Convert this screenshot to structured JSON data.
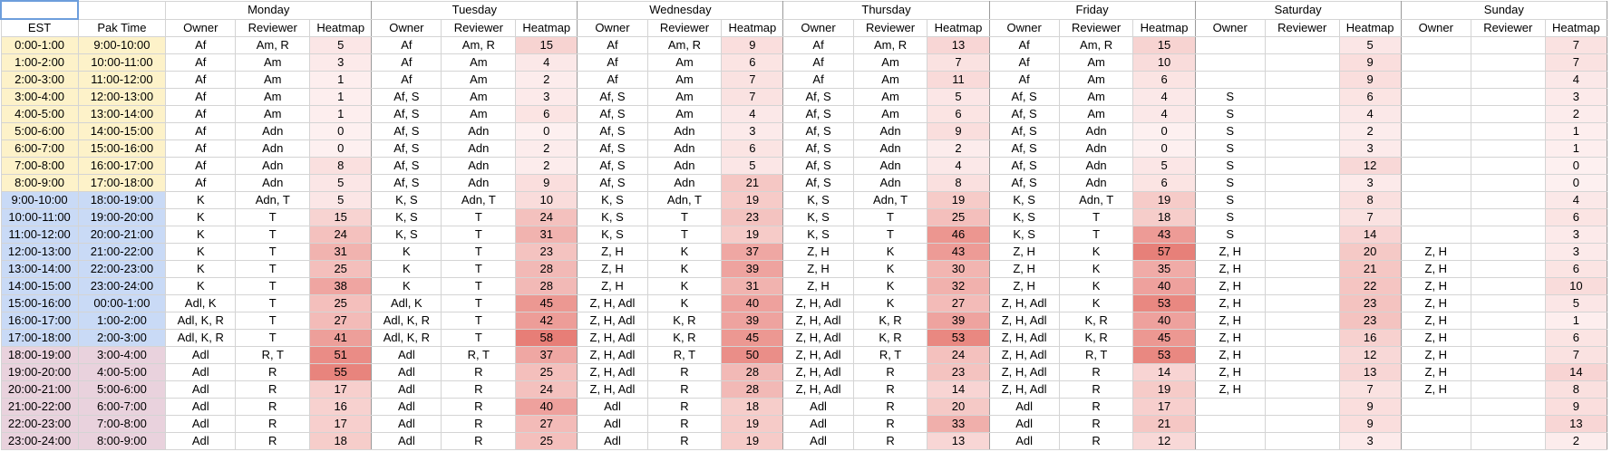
{
  "header": {
    "est": "EST",
    "pak": "Pak Time",
    "cols": [
      "Owner",
      "Reviewer",
      "Heatmap"
    ]
  },
  "days": [
    "Monday",
    "Tuesday",
    "Wednesday",
    "Thursday",
    "Friday",
    "Saturday",
    "Sunday"
  ],
  "colors": {
    "heat_low": "#fdf0f0",
    "heat_high": "#e77e77",
    "est_morning": "#fdf2c9",
    "est_day": "#c9daf6",
    "est_evening": "#e9d2dd"
  },
  "rows": [
    {
      "est": "0:00-1:00",
      "pak": "9:00-10:00",
      "days": [
        [
          "Af",
          "Am, R",
          "5"
        ],
        [
          "Af",
          "Am, R",
          "15"
        ],
        [
          "Af",
          "Am, R",
          "9"
        ],
        [
          "Af",
          "Am, R",
          "13"
        ],
        [
          "Af",
          "Am, R",
          "15"
        ],
        [
          "",
          "",
          "5"
        ],
        [
          "",
          "",
          "7"
        ]
      ]
    },
    {
      "est": "1:00-2:00",
      "pak": "10:00-11:00",
      "days": [
        [
          "Af",
          "Am",
          "3"
        ],
        [
          "Af",
          "Am",
          "4"
        ],
        [
          "Af",
          "Am",
          "6"
        ],
        [
          "Af",
          "Am",
          "7"
        ],
        [
          "Af",
          "Am",
          "10"
        ],
        [
          "",
          "",
          "9"
        ],
        [
          "",
          "",
          "7"
        ]
      ]
    },
    {
      "est": "2:00-3:00",
      "pak": "11:00-12:00",
      "days": [
        [
          "Af",
          "Am",
          "1"
        ],
        [
          "Af",
          "Am",
          "2"
        ],
        [
          "Af",
          "Am",
          "7"
        ],
        [
          "Af",
          "Am",
          "11"
        ],
        [
          "Af",
          "Am",
          "6"
        ],
        [
          "",
          "",
          "9"
        ],
        [
          "",
          "",
          "4"
        ]
      ]
    },
    {
      "est": "3:00-4:00",
      "pak": "12:00-13:00",
      "days": [
        [
          "Af",
          "Am",
          "1"
        ],
        [
          "Af, S",
          "Am",
          "3"
        ],
        [
          "Af, S",
          "Am",
          "7"
        ],
        [
          "Af, S",
          "Am",
          "5"
        ],
        [
          "Af, S",
          "Am",
          "4"
        ],
        [
          "S",
          "",
          "6"
        ],
        [
          "",
          "",
          "3"
        ]
      ]
    },
    {
      "est": "4:00-5:00",
      "pak": "13:00-14:00",
      "days": [
        [
          "Af",
          "Am",
          "1"
        ],
        [
          "Af, S",
          "Am",
          "6"
        ],
        [
          "Af, S",
          "Am",
          "4"
        ],
        [
          "Af, S",
          "Am",
          "6"
        ],
        [
          "Af, S",
          "Am",
          "4"
        ],
        [
          "S",
          "",
          "4"
        ],
        [
          "",
          "",
          "2"
        ]
      ]
    },
    {
      "est": "5:00-6:00",
      "pak": "14:00-15:00",
      "days": [
        [
          "Af",
          "Adn",
          "0"
        ],
        [
          "Af, S",
          "Adn",
          "0"
        ],
        [
          "Af, S",
          "Adn",
          "3"
        ],
        [
          "Af, S",
          "Adn",
          "9"
        ],
        [
          "Af, S",
          "Adn",
          "0"
        ],
        [
          "S",
          "",
          "2"
        ],
        [
          "",
          "",
          "1"
        ]
      ]
    },
    {
      "est": "6:00-7:00",
      "pak": "15:00-16:00",
      "days": [
        [
          "Af",
          "Adn",
          "0"
        ],
        [
          "Af, S",
          "Adn",
          "2"
        ],
        [
          "Af, S",
          "Adn",
          "6"
        ],
        [
          "Af, S",
          "Adn",
          "2"
        ],
        [
          "Af, S",
          "Adn",
          "0"
        ],
        [
          "S",
          "",
          "3"
        ],
        [
          "",
          "",
          "1"
        ]
      ]
    },
    {
      "est": "7:00-8:00",
      "pak": "16:00-17:00",
      "days": [
        [
          "Af",
          "Adn",
          "8"
        ],
        [
          "Af, S",
          "Adn",
          "2"
        ],
        [
          "Af, S",
          "Adn",
          "5"
        ],
        [
          "Af, S",
          "Adn",
          "4"
        ],
        [
          "Af, S",
          "Adn",
          "5"
        ],
        [
          "S",
          "",
          "12"
        ],
        [
          "",
          "",
          "0"
        ]
      ]
    },
    {
      "est": "8:00-9:00",
      "pak": "17:00-18:00",
      "days": [
        [
          "Af",
          "Adn",
          "5"
        ],
        [
          "Af, S",
          "Adn",
          "9"
        ],
        [
          "Af, S",
          "Adn",
          "21"
        ],
        [
          "Af, S",
          "Adn",
          "8"
        ],
        [
          "Af, S",
          "Adn",
          "6"
        ],
        [
          "S",
          "",
          "3"
        ],
        [
          "",
          "",
          "0"
        ]
      ]
    },
    {
      "est": "9:00-10:00",
      "pak": "18:00-19:00",
      "days": [
        [
          "K",
          "Adn, T",
          "5"
        ],
        [
          "K, S",
          "Adn, T",
          "10"
        ],
        [
          "K, S",
          "Adn, T",
          "19"
        ],
        [
          "K, S",
          "Adn, T",
          "19"
        ],
        [
          "K, S",
          "Adn, T",
          "19"
        ],
        [
          "S",
          "",
          "8"
        ],
        [
          "",
          "",
          "4"
        ]
      ]
    },
    {
      "est": "10:00-11:00",
      "pak": "19:00-20:00",
      "days": [
        [
          "K",
          "T",
          "15"
        ],
        [
          "K, S",
          "T",
          "24"
        ],
        [
          "K, S",
          "T",
          "23"
        ],
        [
          "K, S",
          "T",
          "25"
        ],
        [
          "K, S",
          "T",
          "18"
        ],
        [
          "S",
          "",
          "7"
        ],
        [
          "",
          "",
          "6"
        ]
      ]
    },
    {
      "est": "11:00-12:00",
      "pak": "20:00-21:00",
      "days": [
        [
          "K",
          "T",
          "24"
        ],
        [
          "K, S",
          "T",
          "31"
        ],
        [
          "K, S",
          "T",
          "19"
        ],
        [
          "K, S",
          "T",
          "46"
        ],
        [
          "K, S",
          "T",
          "43"
        ],
        [
          "S",
          "",
          "14"
        ],
        [
          "",
          "",
          "3"
        ]
      ]
    },
    {
      "est": "12:00-13:00",
      "pak": "21:00-22:00",
      "days": [
        [
          "K",
          "T",
          "31"
        ],
        [
          "K",
          "T",
          "23"
        ],
        [
          "Z, H",
          "K",
          "37"
        ],
        [
          "Z, H",
          "K",
          "43"
        ],
        [
          "Z, H",
          "K",
          "57"
        ],
        [
          "Z, H",
          "",
          "20"
        ],
        [
          "Z, H",
          "",
          "3"
        ]
      ]
    },
    {
      "est": "13:00-14:00",
      "pak": "22:00-23:00",
      "days": [
        [
          "K",
          "T",
          "25"
        ],
        [
          "K",
          "T",
          "28"
        ],
        [
          "Z, H",
          "K",
          "39"
        ],
        [
          "Z, H",
          "K",
          "30"
        ],
        [
          "Z, H",
          "K",
          "35"
        ],
        [
          "Z, H",
          "",
          "21"
        ],
        [
          "Z, H",
          "",
          "6"
        ]
      ]
    },
    {
      "est": "14:00-15:00",
      "pak": "23:00-24:00",
      "days": [
        [
          "K",
          "T",
          "38"
        ],
        [
          "K",
          "T",
          "28"
        ],
        [
          "Z, H",
          "K",
          "31"
        ],
        [
          "Z, H",
          "K",
          "32"
        ],
        [
          "Z, H",
          "K",
          "40"
        ],
        [
          "Z, H",
          "",
          "22"
        ],
        [
          "Z, H",
          "",
          "10"
        ]
      ]
    },
    {
      "est": "15:00-16:00",
      "pak": "00:00-1:00",
      "days": [
        [
          "Adl, K",
          "T",
          "25"
        ],
        [
          "Adl, K",
          "T",
          "45"
        ],
        [
          "Z, H, Adl",
          "K",
          "40"
        ],
        [
          "Z, H, Adl",
          "K",
          "27"
        ],
        [
          "Z, H, Adl",
          "K",
          "53"
        ],
        [
          "Z, H",
          "",
          "23"
        ],
        [
          "Z, H",
          "",
          "5"
        ]
      ]
    },
    {
      "est": "16:00-17:00",
      "pak": "1:00-2:00",
      "days": [
        [
          "Adl, K, R",
          "T",
          "27"
        ],
        [
          "Adl, K, R",
          "T",
          "42"
        ],
        [
          "Z, H, Adl",
          "K, R",
          "39"
        ],
        [
          "Z, H, Adl",
          "K, R",
          "39"
        ],
        [
          "Z, H, Adl",
          "K, R",
          "40"
        ],
        [
          "Z, H",
          "",
          "23"
        ],
        [
          "Z, H",
          "",
          "1"
        ]
      ]
    },
    {
      "est": "17:00-18:00",
      "pak": "2:00-3:00",
      "days": [
        [
          "Adl, K, R",
          "T",
          "41"
        ],
        [
          "Adl, K, R",
          "T",
          "58"
        ],
        [
          "Z, H, Adl",
          "K, R",
          "45"
        ],
        [
          "Z, H, Adl",
          "K, R",
          "53"
        ],
        [
          "Z, H, Adl",
          "K, R",
          "45"
        ],
        [
          "Z, H",
          "",
          "16"
        ],
        [
          "Z, H",
          "",
          "6"
        ]
      ]
    },
    {
      "est": "18:00-19:00",
      "pak": "3:00-4:00",
      "days": [
        [
          "Adl",
          "R, T",
          "51"
        ],
        [
          "Adl",
          "R, T",
          "37"
        ],
        [
          "Z, H, Adl",
          "R, T",
          "50"
        ],
        [
          "Z, H, Adl",
          "R, T",
          "24"
        ],
        [
          "Z, H, Adl",
          "R, T",
          "53"
        ],
        [
          "Z, H",
          "",
          "12"
        ],
        [
          "Z, H",
          "",
          "7"
        ]
      ]
    },
    {
      "est": "19:00-20:00",
      "pak": "4:00-5:00",
      "days": [
        [
          "Adl",
          "R",
          "55"
        ],
        [
          "Adl",
          "R",
          "25"
        ],
        [
          "Z, H, Adl",
          "R",
          "28"
        ],
        [
          "Z, H, Adl",
          "R",
          "23"
        ],
        [
          "Z, H, Adl",
          "R",
          "14"
        ],
        [
          "Z, H",
          "",
          "13"
        ],
        [
          "Z, H",
          "",
          "14"
        ]
      ]
    },
    {
      "est": "20:00-21:00",
      "pak": "5:00-6:00",
      "days": [
        [
          "Adl",
          "R",
          "17"
        ],
        [
          "Adl",
          "R",
          "24"
        ],
        [
          "Z, H, Adl",
          "R",
          "28"
        ],
        [
          "Z, H, Adl",
          "R",
          "14"
        ],
        [
          "Z, H, Adl",
          "R",
          "19"
        ],
        [
          "Z, H",
          "",
          "7"
        ],
        [
          "Z, H",
          "",
          "8"
        ]
      ]
    },
    {
      "est": "21:00-22:00",
      "pak": "6:00-7:00",
      "days": [
        [
          "Adl",
          "R",
          "16"
        ],
        [
          "Adl",
          "R",
          "40"
        ],
        [
          "Adl",
          "R",
          "18"
        ],
        [
          "Adl",
          "R",
          "20"
        ],
        [
          "Adl",
          "R",
          "17"
        ],
        [
          "",
          "",
          "9"
        ],
        [
          "",
          "",
          "9"
        ]
      ]
    },
    {
      "est": "22:00-23:00",
      "pak": "7:00-8:00",
      "days": [
        [
          "Adl",
          "R",
          "17"
        ],
        [
          "Adl",
          "R",
          "27"
        ],
        [
          "Adl",
          "R",
          "19"
        ],
        [
          "Adl",
          "R",
          "33"
        ],
        [
          "Adl",
          "R",
          "21"
        ],
        [
          "",
          "",
          "9"
        ],
        [
          "",
          "",
          "13"
        ]
      ]
    },
    {
      "est": "23:00-24:00",
      "pak": "8:00-9:00",
      "days": [
        [
          "Adl",
          "R",
          "18"
        ],
        [
          "Adl",
          "R",
          "25"
        ],
        [
          "Adl",
          "R",
          "19"
        ],
        [
          "Adl",
          "R",
          "13"
        ],
        [
          "Adl",
          "R",
          "12"
        ],
        [
          "",
          "",
          "3"
        ],
        [
          "",
          "",
          "2"
        ]
      ]
    }
  ]
}
